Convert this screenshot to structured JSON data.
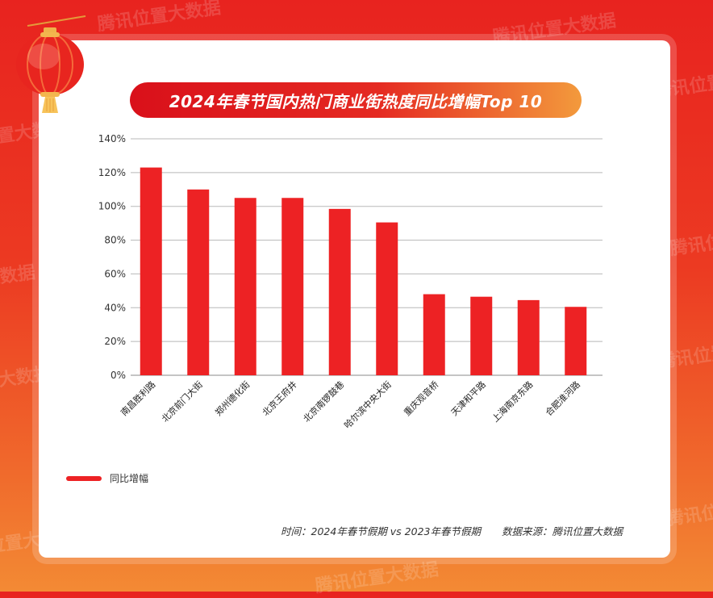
{
  "watermark_text": "腾讯位置大数据",
  "title": "2024年春节国内热门商业街热度同比增幅Top 10",
  "legend_label": "同比增幅",
  "footer": {
    "time": "时间：2024年春节假期 vs 2023年春节假期",
    "source": "数据来源：腾讯位置大数据"
  },
  "colors": {
    "bar": "#ed2224",
    "background_top": "#e8231f",
    "background_bottom": "#f38a34"
  },
  "chart_data": {
    "type": "bar",
    "title": "2024年春节国内热门商业街热度同比增幅Top 10",
    "categories": [
      "南昌胜利路",
      "北京前门大街",
      "郑州德化街",
      "北京王府井",
      "北京南锣鼓巷",
      "哈尔滨中央大街",
      "重庆观音桥",
      "天津和平路",
      "上海南京东路",
      "合肥淮河路"
    ],
    "series": [
      {
        "name": "同比增幅",
        "values": [
          123,
          110,
          105,
          105,
          98.5,
          90.5,
          48,
          46.5,
          44.5,
          40.5
        ]
      }
    ],
    "ylim": [
      0,
      140
    ],
    "yticks": [
      "0%",
      "20%",
      "40%",
      "60%",
      "80%",
      "100%",
      "120%",
      "140%"
    ],
    "grid": true,
    "legend_position": "bottom-left"
  }
}
